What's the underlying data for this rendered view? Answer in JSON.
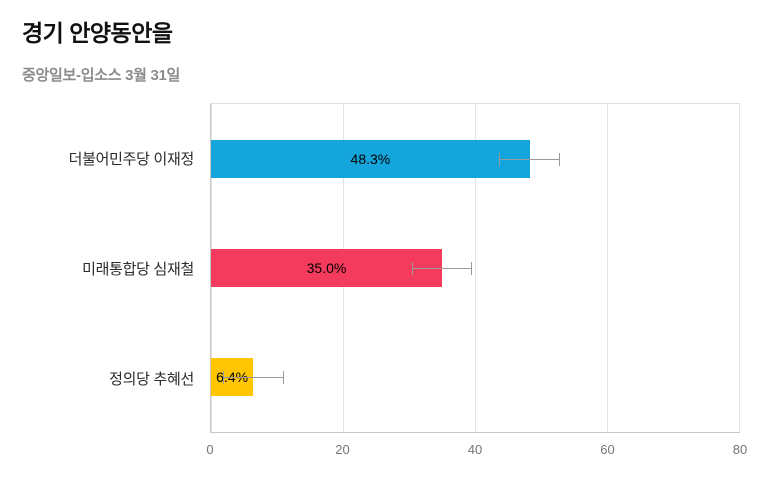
{
  "header": {
    "title": "경기 안양동안을",
    "subtitle": "중앙일보-입소스 3월 31일"
  },
  "chart_data": {
    "type": "bar",
    "orientation": "horizontal",
    "title": "경기 안양동안을",
    "subtitle": "중앙일보-입소스 3월 31일",
    "categories": [
      "더불어민주당 이재정",
      "미래통합당 심재철",
      "정의당 추혜선"
    ],
    "values": [
      48.3,
      35.0,
      6.4
    ],
    "value_labels": [
      "48.3%",
      "35.0%",
      "6.4%"
    ],
    "error_low": [
      43.7,
      30.4,
      1.8
    ],
    "error_high": [
      52.9,
      39.6,
      11.0
    ],
    "bar_colors": [
      "#14a5dc",
      "#f43b5e",
      "#ffc601"
    ],
    "xlim": [
      0,
      80
    ],
    "xticks": [
      0,
      20,
      40,
      60,
      80
    ],
    "grid": true,
    "legend": false,
    "error_bar_color": "#9a9a9a"
  }
}
